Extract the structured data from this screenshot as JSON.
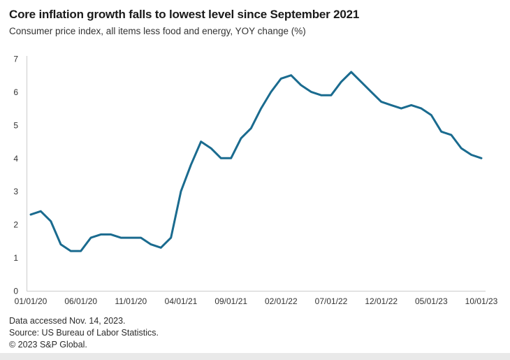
{
  "header": {
    "title": "Core inflation growth falls to lowest level since September 2021",
    "subtitle": "Consumer price index, all items less food and energy, YOY change (%)"
  },
  "footer": {
    "line1": "Data accessed Nov. 14, 2023.",
    "line2": "Source: US Bureau of Labor Statistics.",
    "line3": "© 2023 S&P Global."
  },
  "colors": {
    "line": "#1a6b8f",
    "axis": "#cccccc",
    "title_text": "#1a1a1a",
    "tick_text": "#333333",
    "bottom_strip": "#e9e9e9"
  },
  "chart_data": {
    "type": "line",
    "title": "Core inflation growth falls to lowest level since September 2021",
    "subtitle": "Consumer price index, all items less food and energy, YOY change (%)",
    "xlabel": "",
    "ylabel": "YOY change (%)",
    "ylim": [
      0,
      7
    ],
    "y_ticks": [
      0,
      1,
      2,
      3,
      4,
      5,
      6,
      7
    ],
    "x_tick_labels": [
      "01/01/20",
      "06/01/20",
      "11/01/20",
      "04/01/21",
      "09/01/21",
      "02/01/22",
      "07/01/22",
      "12/01/22",
      "05/01/23",
      "10/01/23"
    ],
    "x_tick_month_indices": [
      0,
      5,
      10,
      15,
      20,
      25,
      30,
      35,
      40,
      45
    ],
    "frequency": "monthly",
    "grid": false,
    "legend": false,
    "dates": [
      "01/01/20",
      "02/01/20",
      "03/01/20",
      "04/01/20",
      "05/01/20",
      "06/01/20",
      "07/01/20",
      "08/01/20",
      "09/01/20",
      "10/01/20",
      "11/01/20",
      "12/01/20",
      "01/01/21",
      "02/01/21",
      "03/01/21",
      "04/01/21",
      "05/01/21",
      "06/01/21",
      "07/01/21",
      "08/01/21",
      "09/01/21",
      "10/01/21",
      "11/01/21",
      "12/01/21",
      "01/01/22",
      "02/01/22",
      "03/01/22",
      "04/01/22",
      "05/01/22",
      "06/01/22",
      "07/01/22",
      "08/01/22",
      "09/01/22",
      "10/01/22",
      "11/01/22",
      "12/01/22",
      "01/01/23",
      "02/01/23",
      "03/01/23",
      "04/01/23",
      "05/01/23",
      "06/01/23",
      "07/01/23",
      "08/01/23",
      "09/01/23",
      "10/01/23"
    ],
    "values": [
      2.3,
      2.4,
      2.1,
      1.4,
      1.2,
      1.2,
      1.6,
      1.7,
      1.7,
      1.6,
      1.6,
      1.6,
      1.4,
      1.3,
      1.6,
      3.0,
      3.8,
      4.5,
      4.3,
      4.0,
      4.0,
      4.6,
      4.9,
      5.5,
      6.0,
      6.4,
      6.5,
      6.2,
      6.0,
      5.9,
      5.9,
      6.3,
      6.6,
      6.3,
      6.0,
      5.7,
      5.6,
      5.5,
      5.6,
      5.5,
      5.3,
      4.8,
      4.7,
      4.3,
      4.1,
      4.0
    ]
  }
}
